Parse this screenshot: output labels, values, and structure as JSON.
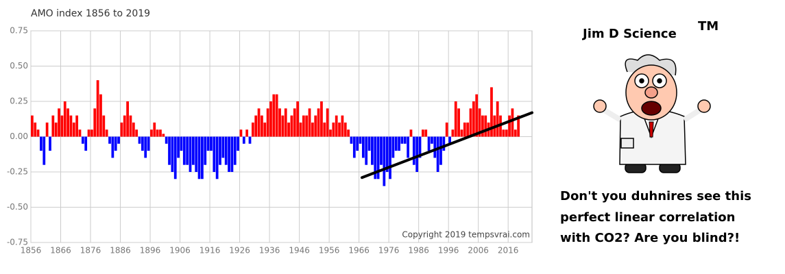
{
  "chart_data": {
    "type": "bar",
    "title": "AMO index 1856 to 2019",
    "x": [
      1856,
      1857,
      1858,
      1859,
      1860,
      1861,
      1862,
      1863,
      1864,
      1865,
      1866,
      1867,
      1868,
      1869,
      1870,
      1871,
      1872,
      1873,
      1874,
      1875,
      1876,
      1877,
      1878,
      1879,
      1880,
      1881,
      1882,
      1883,
      1884,
      1885,
      1886,
      1887,
      1888,
      1889,
      1890,
      1891,
      1892,
      1893,
      1894,
      1895,
      1896,
      1897,
      1898,
      1899,
      1900,
      1901,
      1902,
      1903,
      1904,
      1905,
      1906,
      1907,
      1908,
      1909,
      1910,
      1911,
      1912,
      1913,
      1914,
      1915,
      1916,
      1917,
      1918,
      1919,
      1920,
      1921,
      1922,
      1923,
      1924,
      1925,
      1926,
      1927,
      1928,
      1929,
      1930,
      1931,
      1932,
      1933,
      1934,
      1935,
      1936,
      1937,
      1938,
      1939,
      1940,
      1941,
      1942,
      1943,
      1944,
      1945,
      1946,
      1947,
      1948,
      1949,
      1950,
      1951,
      1952,
      1953,
      1954,
      1955,
      1956,
      1957,
      1958,
      1959,
      1960,
      1961,
      1962,
      1963,
      1964,
      1965,
      1966,
      1967,
      1968,
      1969,
      1970,
      1971,
      1972,
      1973,
      1974,
      1975,
      1976,
      1977,
      1978,
      1979,
      1980,
      1981,
      1982,
      1983,
      1984,
      1985,
      1986,
      1987,
      1988,
      1989,
      1990,
      1991,
      1992,
      1993,
      1994,
      1995,
      1996,
      1997,
      1998,
      1999,
      2000,
      2001,
      2002,
      2003,
      2004,
      2005,
      2006,
      2007,
      2008,
      2009,
      2010,
      2011,
      2012,
      2013,
      2014,
      2015,
      2016,
      2017,
      2018,
      2019
    ],
    "values": [
      0.15,
      0.1,
      0.05,
      -0.1,
      -0.2,
      0.1,
      -0.1,
      0.15,
      0.1,
      0.2,
      0.15,
      0.25,
      0.2,
      0.15,
      0.1,
      0.15,
      0.05,
      -0.05,
      -0.1,
      0.05,
      0.05,
      0.2,
      0.4,
      0.3,
      0.15,
      0.05,
      -0.05,
      -0.15,
      -0.1,
      -0.05,
      0.1,
      0.15,
      0.25,
      0.15,
      0.1,
      0.05,
      -0.05,
      -0.1,
      -0.15,
      -0.1,
      0.05,
      0.1,
      0.05,
      0.05,
      0.02,
      -0.05,
      -0.2,
      -0.25,
      -0.3,
      -0.15,
      -0.1,
      -0.2,
      -0.2,
      -0.25,
      -0.2,
      -0.25,
      -0.3,
      -0.3,
      -0.2,
      -0.1,
      -0.1,
      -0.25,
      -0.3,
      -0.2,
      -0.15,
      -0.2,
      -0.25,
      -0.25,
      -0.2,
      -0.1,
      0.05,
      -0.05,
      0.05,
      -0.05,
      0.1,
      0.15,
      0.2,
      0.15,
      0.1,
      0.2,
      0.25,
      0.3,
      0.3,
      0.2,
      0.15,
      0.2,
      0.1,
      0.15,
      0.2,
      0.25,
      0.1,
      0.15,
      0.15,
      0.2,
      0.1,
      0.15,
      0.2,
      0.25,
      0.1,
      0.2,
      0.05,
      0.1,
      0.15,
      0.1,
      0.15,
      0.1,
      0.05,
      -0.05,
      -0.15,
      -0.1,
      -0.05,
      -0.15,
      -0.2,
      -0.1,
      -0.2,
      -0.3,
      -0.3,
      -0.2,
      -0.35,
      -0.25,
      -0.3,
      -0.15,
      -0.1,
      -0.1,
      -0.05,
      -0.05,
      -0.15,
      0.05,
      -0.2,
      -0.25,
      -0.15,
      0.05,
      0.05,
      -0.1,
      -0.05,
      -0.15,
      -0.25,
      -0.2,
      -0.1,
      0.1,
      -0.05,
      0.05,
      0.25,
      0.2,
      0.05,
      0.1,
      0.1,
      0.2,
      0.25,
      0.3,
      0.2,
      0.15,
      0.15,
      0.1,
      0.35,
      0.15,
      0.25,
      0.15,
      0.05,
      0.05,
      0.15,
      0.2,
      0.05,
      0.15
    ],
    "positive_color": "#ff0000",
    "negative_color": "#0000ff",
    "trend": {
      "x": [
        1967,
        2024
      ],
      "values": [
        -0.29,
        0.17
      ],
      "color": "#000000"
    },
    "xlim": [
      1856,
      2024
    ],
    "xticks": [
      1856,
      1866,
      1876,
      1886,
      1896,
      1906,
      1916,
      1926,
      1936,
      1946,
      1956,
      1966,
      1976,
      1986,
      1996,
      2006,
      2016
    ],
    "ylim": [
      -0.75,
      0.75
    ],
    "yticks": [
      -0.75,
      {
        "value": -0.5,
        "label": "-0.50"
      },
      -0.25,
      {
        "value": 0,
        "label": "0.00"
      },
      0.25,
      {
        "value": 0.5,
        "label": "0.50"
      },
      0.75
    ],
    "grid": true,
    "annotation": "Copyright 2019 tempsvrai.com"
  },
  "sidebar": {
    "title": "Jim D Science",
    "trademark": "TM",
    "caption": [
      "Don't you duhnires see this",
      "perfect linear correlation",
      "with CO2? Are you blind?!"
    ]
  }
}
